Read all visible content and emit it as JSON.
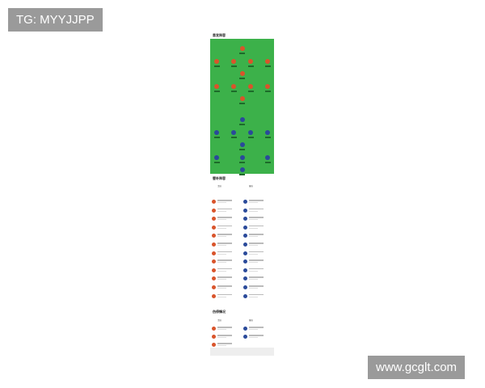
{
  "watermarks": {
    "top_left": "TG: MYYJJPP",
    "bottom_right": "www.gcglt.com"
  },
  "sections": {
    "starting": "首发阵容",
    "subs": "替补阵容",
    "injuries": "伤停情况"
  },
  "teams": {
    "home": "主队",
    "away": "客队"
  },
  "colors": {
    "pitch": "#3cb14a",
    "home": "#d9542b",
    "away": "#2a4a9a"
  },
  "lineup": {
    "home_rows": [
      1,
      4,
      1,
      4,
      1
    ],
    "away_rows": [
      1,
      3,
      1,
      4,
      1
    ]
  },
  "subs": {
    "home_count": 12,
    "away_count": 12
  },
  "injuries": {
    "home_count": 3,
    "away_count": 2
  }
}
